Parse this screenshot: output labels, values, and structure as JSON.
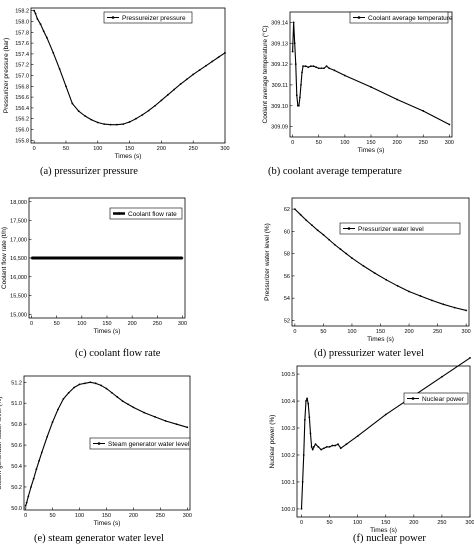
{
  "chart_data": [
    {
      "id": "a",
      "type": "line",
      "caption": "(a) pressurizer pressure",
      "xlabel": "Times (s)",
      "ylabel": "Pressurizer pressure (bar)",
      "legend": "Pressureizer pressure",
      "legend_position": "top-right",
      "xlim": [
        -5,
        300
      ],
      "ylim": [
        155.75,
        158.25
      ],
      "xticks": [
        0,
        50,
        100,
        150,
        200,
        250,
        300
      ],
      "yticks": [
        "155.8",
        "156.0",
        "156.2",
        "156.4",
        "156.6",
        "156.8",
        "157.0",
        "157.2",
        "157.4",
        "157.6",
        "157.8",
        "158.0",
        "158.2"
      ],
      "series": [
        {
          "x": [
            0,
            2,
            5,
            10,
            15,
            20,
            30,
            40,
            50,
            60,
            70,
            80,
            90,
            100,
            110,
            120,
            130,
            140,
            150,
            160,
            170,
            180,
            190,
            200,
            210,
            220,
            230,
            240,
            250,
            260,
            270,
            280,
            290,
            300
          ],
          "y": [
            158.2,
            158.15,
            158.05,
            157.95,
            157.82,
            157.7,
            157.42,
            157.12,
            156.8,
            156.48,
            156.34,
            156.25,
            156.18,
            156.13,
            156.1,
            156.09,
            156.09,
            156.1,
            156.14,
            156.2,
            156.27,
            156.35,
            156.44,
            156.54,
            156.64,
            156.74,
            156.84,
            156.93,
            157.02,
            157.1,
            157.18,
            157.26,
            157.34,
            157.42
          ]
        }
      ]
    },
    {
      "id": "b",
      "type": "line",
      "caption": "(b) coolant average temperature",
      "xlabel": "Times (s)",
      "ylabel": "Coolant average temperature (°C)",
      "legend": "Coolant average temperature",
      "legend_position": "top-right",
      "xlim": [
        -5,
        305
      ],
      "ylim": [
        309.085,
        309.145
      ],
      "xticks": [
        0,
        50,
        100,
        150,
        200,
        250,
        300
      ],
      "yticks": [
        "309.09",
        "309.10",
        "309.11",
        "309.12",
        "309.13",
        "309.14"
      ],
      "series": [
        {
          "x": [
            0,
            2,
            4,
            6,
            8,
            10,
            12,
            14,
            16,
            18,
            20,
            25,
            30,
            35,
            40,
            45,
            50,
            55,
            60,
            65,
            70,
            80,
            100,
            150,
            200,
            250,
            300
          ],
          "y": [
            309.126,
            309.14,
            309.13,
            309.12,
            309.105,
            309.1,
            309.1,
            309.104,
            309.11,
            309.116,
            309.119,
            309.119,
            309.1185,
            309.119,
            309.119,
            309.1185,
            309.118,
            309.118,
            309.118,
            309.119,
            309.118,
            309.117,
            309.1145,
            309.109,
            309.103,
            309.0975,
            309.091
          ]
        }
      ]
    },
    {
      "id": "c",
      "type": "line",
      "caption": "(c) coolant flow rate",
      "xlabel": "Times (s)",
      "ylabel": "Coolant flow rate (t/h)",
      "legend": "Coolant flow rate",
      "legend_position": "top-right",
      "xlim": [
        -5,
        305
      ],
      "ylim": [
        14900,
        18100
      ],
      "xticks": [
        0,
        50,
        100,
        150,
        200,
        250,
        300
      ],
      "yticks": [
        "15,000",
        "15,500",
        "16,000",
        "16,500",
        "17,000",
        "17,500",
        "18,000"
      ],
      "series": [
        {
          "x": [
            0,
            300
          ],
          "y": [
            16500,
            16500
          ]
        }
      ]
    },
    {
      "id": "d",
      "type": "line",
      "caption": "(d) pressurizer water level",
      "xlabel": "Times (s)",
      "ylabel": "Pressurizer water level (%)",
      "legend": "Pressurizer water level",
      "legend_position": "top-right",
      "xlim": [
        -5,
        305
      ],
      "ylim": [
        51.5,
        63
      ],
      "xticks": [
        0,
        50,
        100,
        150,
        200,
        250,
        300
      ],
      "yticks": [
        "52",
        "54",
        "56",
        "58",
        "60",
        "62"
      ],
      "series": [
        {
          "x": [
            0,
            10,
            20,
            30,
            40,
            50,
            60,
            70,
            80,
            90,
            100,
            120,
            140,
            160,
            180,
            200,
            220,
            240,
            260,
            280,
            300
          ],
          "y": [
            62.0,
            61.5,
            61.0,
            60.55,
            60.1,
            59.7,
            59.25,
            58.8,
            58.4,
            58.0,
            57.6,
            56.9,
            56.25,
            55.65,
            55.1,
            54.6,
            54.2,
            53.8,
            53.45,
            53.15,
            52.9
          ]
        }
      ]
    },
    {
      "id": "e",
      "type": "line",
      "caption": "(e) steam generator water level",
      "xlabel": "Times (s)",
      "ylabel": "Steam generator water level (%)",
      "legend": "Steam generator water level",
      "legend_position": "center-right",
      "xlim": [
        -3,
        305
      ],
      "ylim": [
        49.98,
        51.26
      ],
      "xticks": [
        0,
        50,
        100,
        150,
        200,
        250,
        300
      ],
      "yticks": [
        "50.0",
        "50.2",
        "50.4",
        "50.6",
        "50.8",
        "51.0",
        "51.2"
      ],
      "series": [
        {
          "x": [
            0,
            2,
            5,
            10,
            15,
            20,
            25,
            30,
            40,
            50,
            60,
            70,
            80,
            90,
            100,
            110,
            120,
            130,
            140,
            150,
            160,
            170,
            180,
            190,
            200,
            220,
            240,
            260,
            280,
            300
          ],
          "y": [
            50.02,
            50.05,
            50.11,
            50.2,
            50.28,
            50.37,
            50.45,
            50.53,
            50.68,
            50.82,
            50.94,
            51.04,
            51.1,
            51.15,
            51.18,
            51.19,
            51.2,
            51.19,
            51.17,
            51.14,
            51.1,
            51.06,
            51.02,
            50.99,
            50.96,
            50.91,
            50.87,
            50.83,
            50.8,
            50.77
          ]
        }
      ]
    },
    {
      "id": "f",
      "type": "line",
      "caption": "(f) nuclear power",
      "xlabel": "Times (s)",
      "ylabel": "Nuclear power (%)",
      "legend": "Nuclear power",
      "legend_position": "center-right",
      "xlim": [
        -8,
        300
      ],
      "ylim": [
        99.97,
        100.53
      ],
      "xticks": [
        0,
        50,
        100,
        150,
        200,
        250,
        300
      ],
      "yticks": [
        "100.0",
        "100.1",
        "100.2",
        "100.3",
        "100.4",
        "100.5"
      ],
      "series": [
        {
          "x": [
            0,
            2,
            4,
            6,
            8,
            10,
            12,
            14,
            16,
            18,
            20,
            22,
            25,
            30,
            35,
            40,
            45,
            50,
            55,
            60,
            65,
            70,
            80,
            100,
            150,
            200,
            250,
            300
          ],
          "y": [
            100.0,
            100.1,
            100.2,
            100.33,
            100.4,
            100.41,
            100.39,
            100.34,
            100.28,
            100.23,
            100.22,
            100.23,
            100.24,
            100.23,
            100.22,
            100.225,
            100.23,
            100.23,
            100.235,
            100.235,
            100.24,
            100.225,
            100.24,
            100.27,
            100.35,
            100.42,
            100.49,
            100.56
          ]
        }
      ]
    }
  ]
}
